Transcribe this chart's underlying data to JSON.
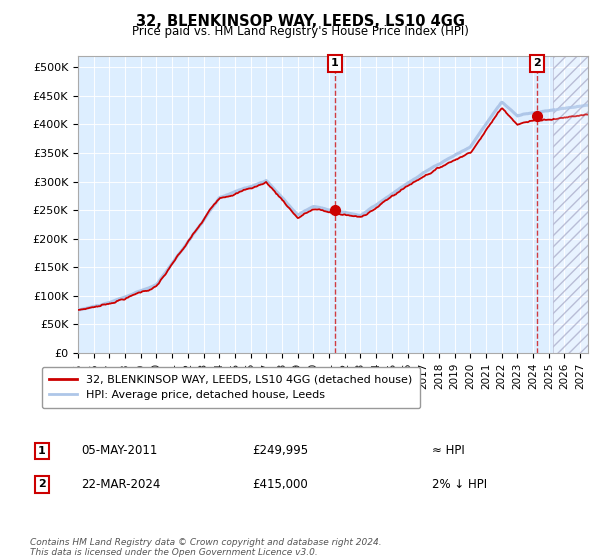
{
  "title": "32, BLENKINSOP WAY, LEEDS, LS10 4GG",
  "subtitle": "Price paid vs. HM Land Registry's House Price Index (HPI)",
  "ylim": [
    0,
    520000
  ],
  "yticks": [
    0,
    50000,
    100000,
    150000,
    200000,
    250000,
    300000,
    350000,
    400000,
    450000,
    500000
  ],
  "xlim_start": 1995.0,
  "xlim_end": 2027.5,
  "xticks": [
    1995,
    1996,
    1997,
    1998,
    1999,
    2000,
    2001,
    2002,
    2003,
    2004,
    2005,
    2006,
    2007,
    2008,
    2009,
    2010,
    2011,
    2012,
    2013,
    2014,
    2015,
    2016,
    2017,
    2018,
    2019,
    2020,
    2021,
    2022,
    2023,
    2024,
    2025,
    2026,
    2027
  ],
  "hpi_color": "#aec6e8",
  "price_color": "#cc0000",
  "marker_color": "#cc0000",
  "sale1_x": 2011.35,
  "sale1_y": 249995,
  "sale1_label": "05-MAY-2011",
  "sale1_price": "£249,995",
  "sale1_hpi": "≈ HPI",
  "sale2_x": 2024.23,
  "sale2_y": 415000,
  "sale2_label": "22-MAR-2024",
  "sale2_price": "£415,000",
  "sale2_hpi": "2% ↓ HPI",
  "legend_line1": "32, BLENKINSOP WAY, LEEDS, LS10 4GG (detached house)",
  "legend_line2": "HPI: Average price, detached house, Leeds",
  "footnote": "Contains HM Land Registry data © Crown copyright and database right 2024.\nThis data is licensed under the Open Government Licence v3.0.",
  "plot_bg": "#ddeeff",
  "future_start": 2025.3
}
